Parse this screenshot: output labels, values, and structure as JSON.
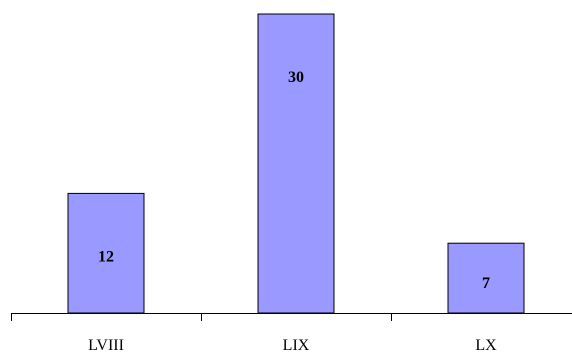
{
  "chart_data": {
    "type": "bar",
    "categories": [
      "LVIII",
      "LIX",
      "LX"
    ],
    "values": [
      12,
      30,
      7
    ],
    "ylim": [
      0,
      30
    ],
    "grid": false,
    "legend": "none",
    "data_labels": [
      "12",
      "30",
      "7"
    ],
    "colors": {
      "bar_fill": "#9999ff",
      "bar_stroke": "#000000",
      "axis": "#000000",
      "background": "#ffffff"
    }
  }
}
